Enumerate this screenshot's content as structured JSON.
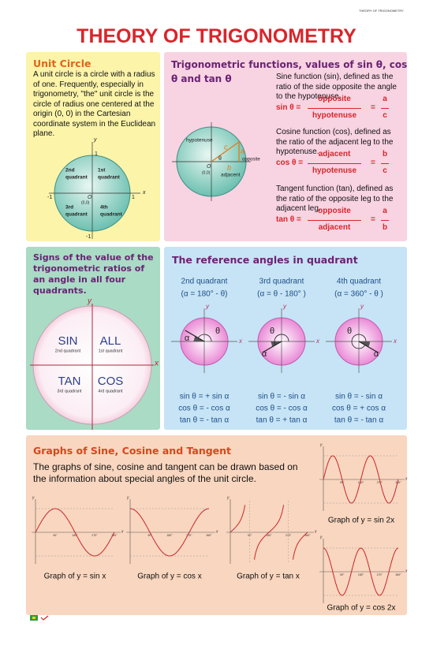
{
  "corner_label": "THEORY OF TRIGONOMETRY",
  "title": "THEORY OF TRIGONOMETRY",
  "unit_circle": {
    "heading": "Unit Circle",
    "text": "A unit circle is a circle with a radius of one. Frequently, especially in trigonometry, \"the\" unit circle is the circle of radius one centered at the origin (0, 0) in the Cartesian coordinate system in the Euclidean plane.",
    "quadrants": [
      [
        "1st",
        "quadrant"
      ],
      [
        "2nd",
        "quadrant"
      ],
      [
        "3rd",
        "quadrant"
      ],
      [
        "4th",
        "quadrant"
      ]
    ],
    "x_axis": "x",
    "y_axis": "y",
    "x_min": "-1",
    "x_max": "1",
    "y_min": "-1",
    "y_max": "1",
    "origin": "O",
    "origin_coords": "(0,0)"
  },
  "trig_functions": {
    "heading": "Trigonometric functions, values of sin θ, cos θ and tan θ",
    "diagram": {
      "hypotenuse": "hypotenuse",
      "opposite": "opposite",
      "adjacent": "adjacent",
      "a": "a",
      "b": "b",
      "c": "c",
      "theta": "θ",
      "origin": "O",
      "origin_coords": "(0,0)"
    },
    "items": [
      {
        "text": "Sine function (sin), defined as the ratio of the side opposite the angle to the hypotenuse.",
        "lhs": "sin θ =",
        "numerator": "opposite",
        "denominator": "hypotenuse",
        "equals": "=",
        "ratio_numerator": "a",
        "ratio_denominator": "c"
      },
      {
        "text": "Cosine function (cos), defined as the ratio of the adjacent leg to the hypotenuse.",
        "lhs": "cos θ =",
        "numerator": "adjacent",
        "denominator": "hypotenuse",
        "equals": "=",
        "ratio_numerator": "b",
        "ratio_denominator": "c"
      },
      {
        "text": "Tangent function (tan), defined as the ratio of the opposite leg to the adjacent leg.",
        "lhs": "tan θ =",
        "numerator": "opposite",
        "denominator": "adjacent",
        "equals": "=",
        "ratio_numerator": "a",
        "ratio_denominator": "b"
      }
    ]
  },
  "signs": {
    "heading": "Signs of the value of the trigonometric ratios of an angle in all four quadrants.",
    "x_axis": "x",
    "y_axis": "y",
    "quadrants": [
      {
        "name": "SIN",
        "label": "2nd quadrant"
      },
      {
        "name": "ALL",
        "label": "1st quadrant"
      },
      {
        "name": "TAN",
        "label": "3rd quadrant"
      },
      {
        "name": "COS",
        "label": "4rd quadrant"
      }
    ]
  },
  "reference_angles": {
    "heading": "The reference angles in quadrant",
    "alpha": "α",
    "theta": "θ",
    "x_axis": "x",
    "y_axis": "y",
    "columns": [
      {
        "quadrant": "2nd quadrant",
        "relation": "(α = 180° - θ)",
        "formulas": [
          "sin θ = + sin α",
          "cos θ = - cos α",
          "tan θ = - tan α"
        ]
      },
      {
        "quadrant": "3rd quadrant",
        "relation": "(α = θ - 180° )",
        "formulas": [
          "sin θ = - sin α",
          "cos θ = - cos α",
          "tan θ = + tan α"
        ]
      },
      {
        "quadrant": "4th quadrant",
        "relation": "(α = 360° - θ )",
        "formulas": [
          "sin θ = - sin α",
          "cos θ = + cos α",
          "tan θ = - tan α"
        ]
      }
    ]
  },
  "graphs": {
    "heading": "Graphs of Sine, Cosine and Tangent",
    "text": "The graphs of sine, cosine and tangent can be drawn based on the information about special angles of the unit circle.",
    "tick_labels": [
      "90°",
      "180°",
      "270°",
      "360°"
    ],
    "x_axis": "x",
    "y_axis": "y",
    "plots": [
      {
        "caption": "Graph of y = sin x"
      },
      {
        "caption": "Graph of y = cos x"
      },
      {
        "caption": "Graph of y = tan x"
      },
      {
        "caption": "Graph of y = sin 2x"
      },
      {
        "caption": "Graph of y = cos 2x"
      }
    ]
  }
}
